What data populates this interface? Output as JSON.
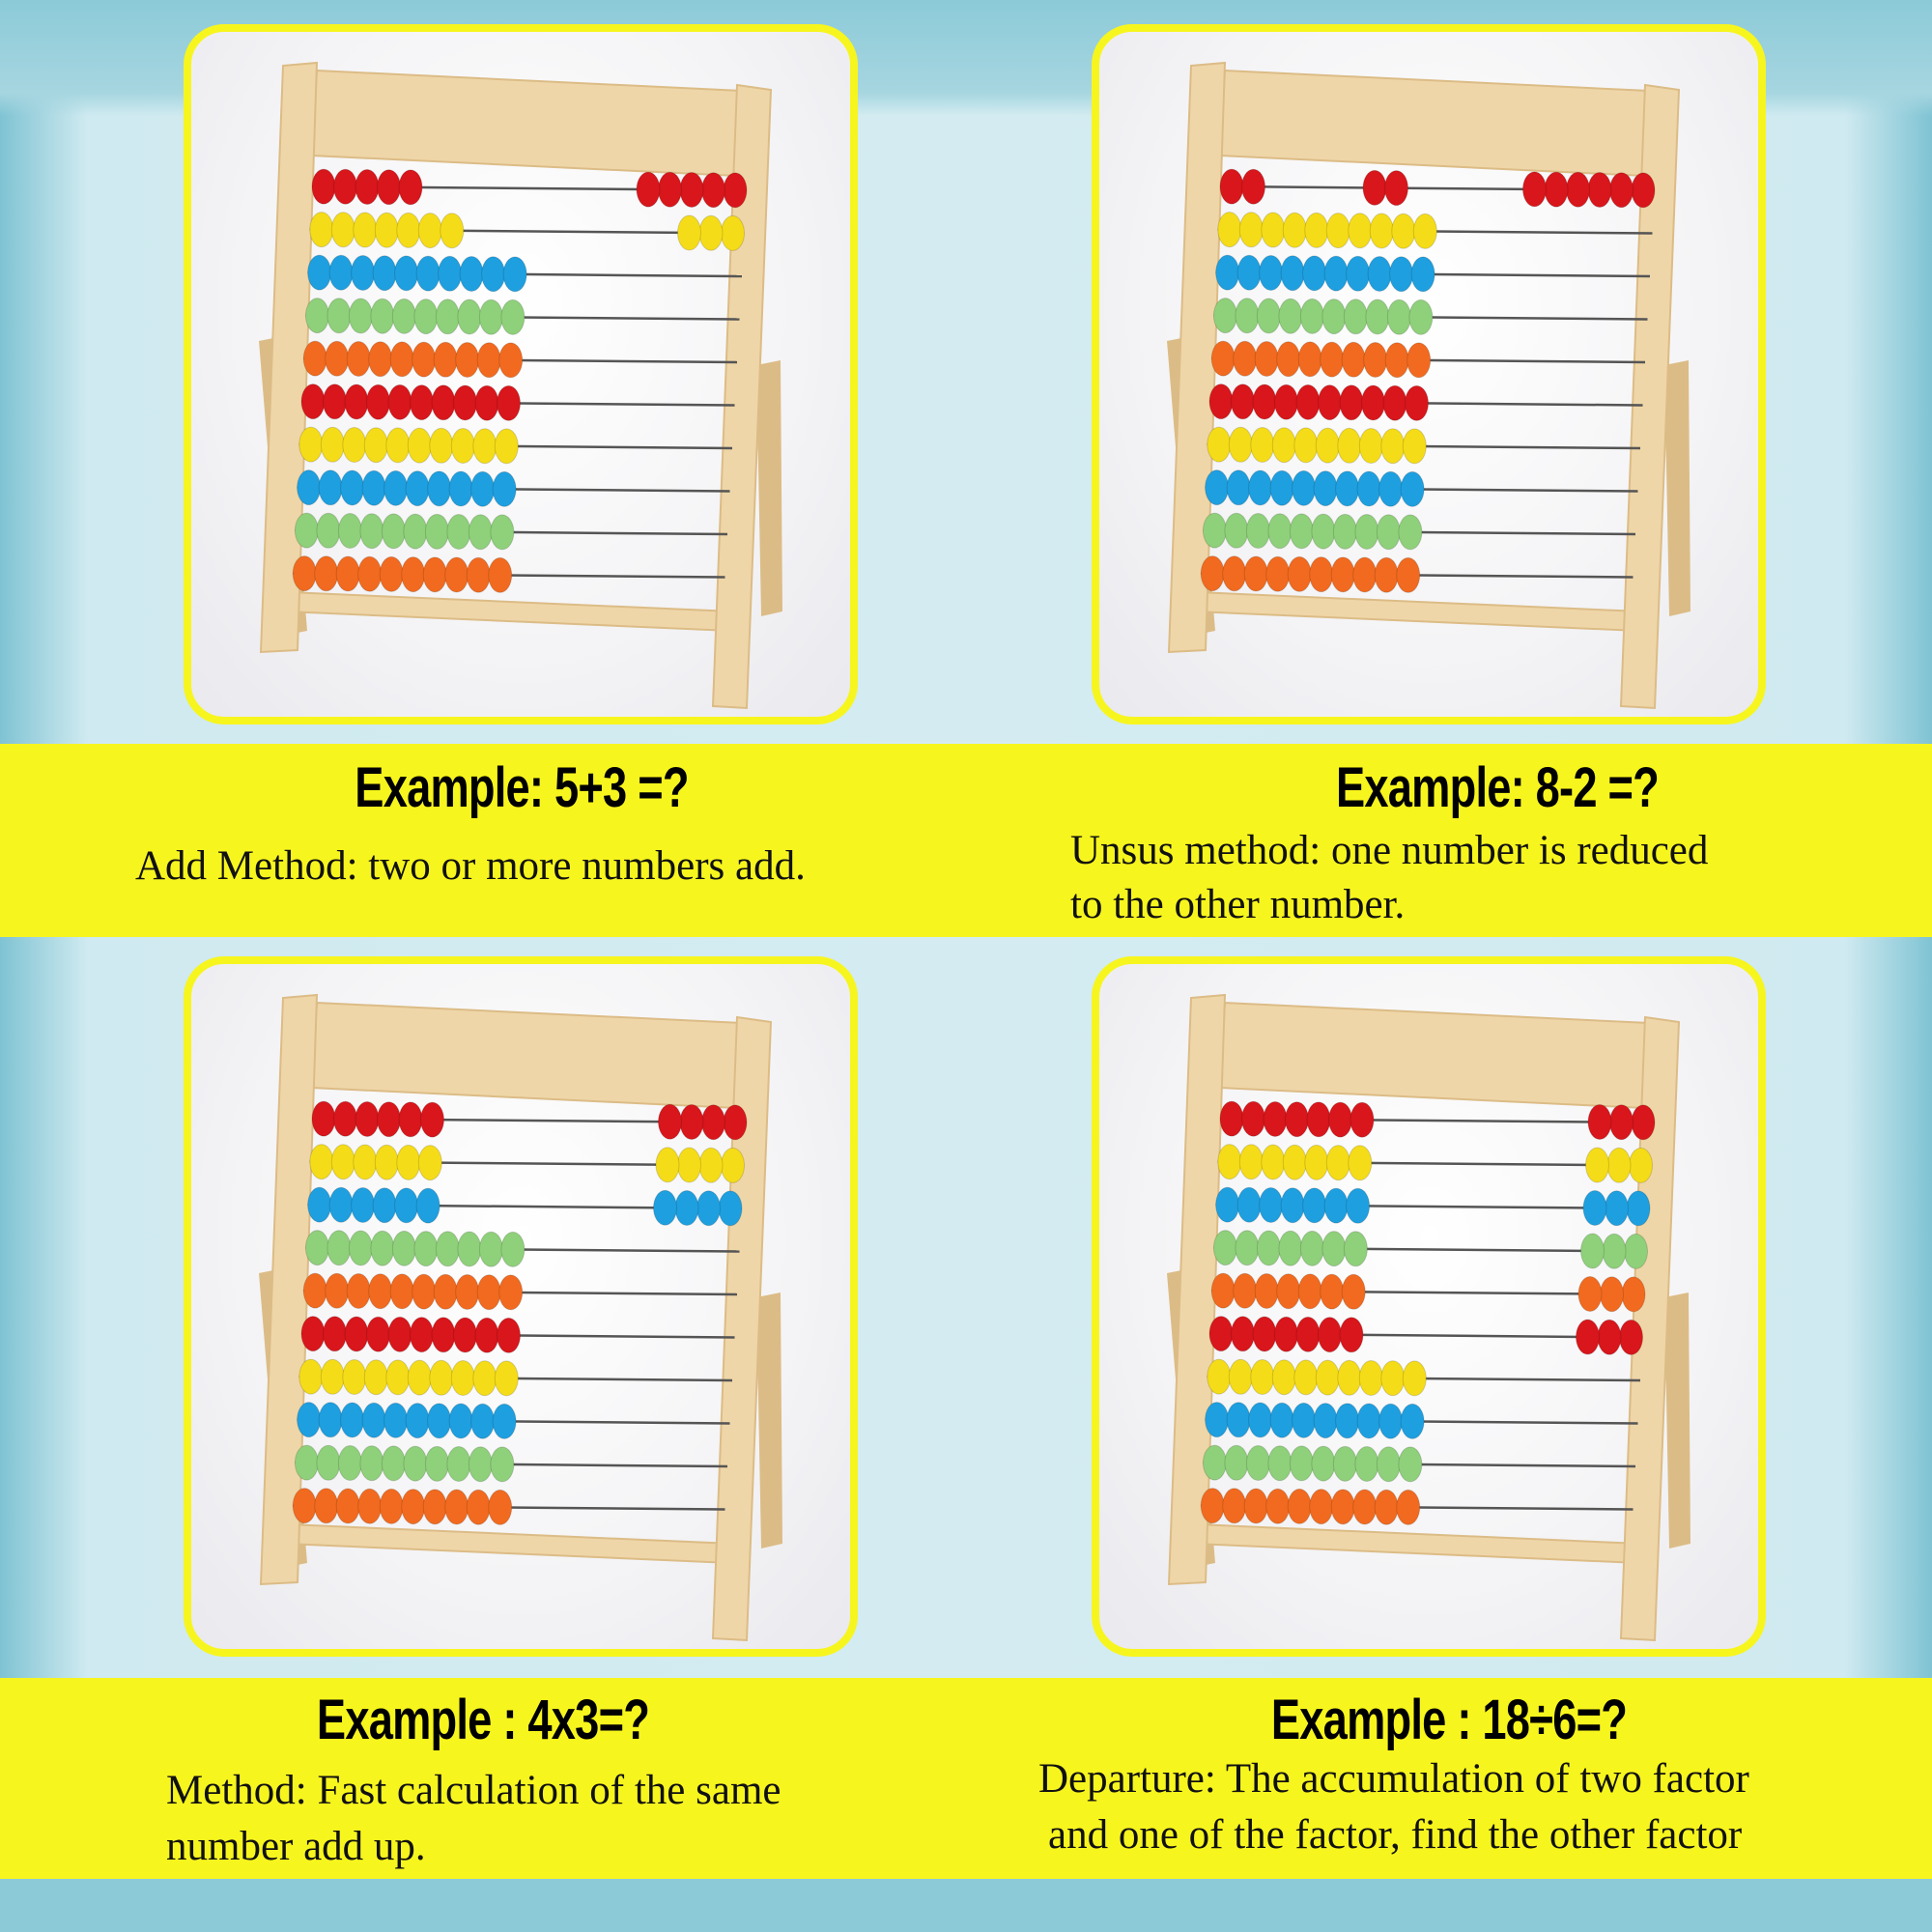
{
  "colors": {
    "highlight": "#f7f51e",
    "background": "#cfeaf0",
    "bead_colors": [
      "#d8161b",
      "#f5dc18",
      "#1e9fe0",
      "#8fd07a",
      "#f26a1f",
      "#d8161b",
      "#f5dc18",
      "#1e9fe0",
      "#8fd07a",
      "#f26a1f"
    ]
  },
  "examples": [
    {
      "title": "Example: 5+3 =?",
      "lines": [
        "Add Method: two or more numbers add."
      ],
      "beads": [
        [
          5,
          0,
          5
        ],
        [
          7,
          0,
          3
        ],
        [
          10,
          0,
          0
        ],
        [
          10,
          0,
          0
        ],
        [
          10,
          0,
          0
        ],
        [
          10,
          0,
          0
        ],
        [
          10,
          0,
          0
        ],
        [
          10,
          0,
          0
        ],
        [
          10,
          0,
          0
        ],
        [
          10,
          0,
          0
        ]
      ]
    },
    {
      "title": "Example: 8-2 =?",
      "lines": [
        "Unsus method: one number is reduced",
        "to the other number."
      ],
      "beads": [
        [
          2,
          2,
          6
        ],
        [
          10,
          0,
          0
        ],
        [
          10,
          0,
          0
        ],
        [
          10,
          0,
          0
        ],
        [
          10,
          0,
          0
        ],
        [
          10,
          0,
          0
        ],
        [
          10,
          0,
          0
        ],
        [
          10,
          0,
          0
        ],
        [
          10,
          0,
          0
        ],
        [
          10,
          0,
          0
        ]
      ]
    },
    {
      "title": "Example : 4x3=?",
      "lines": [
        "Method: Fast calculation of the same",
        "number add up."
      ],
      "beads": [
        [
          6,
          0,
          4
        ],
        [
          6,
          0,
          4
        ],
        [
          6,
          0,
          4
        ],
        [
          10,
          0,
          0
        ],
        [
          10,
          0,
          0
        ],
        [
          10,
          0,
          0
        ],
        [
          10,
          0,
          0
        ],
        [
          10,
          0,
          0
        ],
        [
          10,
          0,
          0
        ],
        [
          10,
          0,
          0
        ]
      ]
    },
    {
      "title": "Example : 18÷6=?",
      "lines": [
        "Departure: The accumulation of two factor",
        "and one of the factor, find the other factor"
      ],
      "beads": [
        [
          7,
          0,
          3
        ],
        [
          7,
          0,
          3
        ],
        [
          7,
          0,
          3
        ],
        [
          7,
          0,
          3
        ],
        [
          7,
          0,
          3
        ],
        [
          7,
          0,
          3
        ],
        [
          10,
          0,
          0
        ],
        [
          10,
          0,
          0
        ],
        [
          10,
          0,
          0
        ],
        [
          10,
          0,
          0
        ]
      ]
    }
  ]
}
